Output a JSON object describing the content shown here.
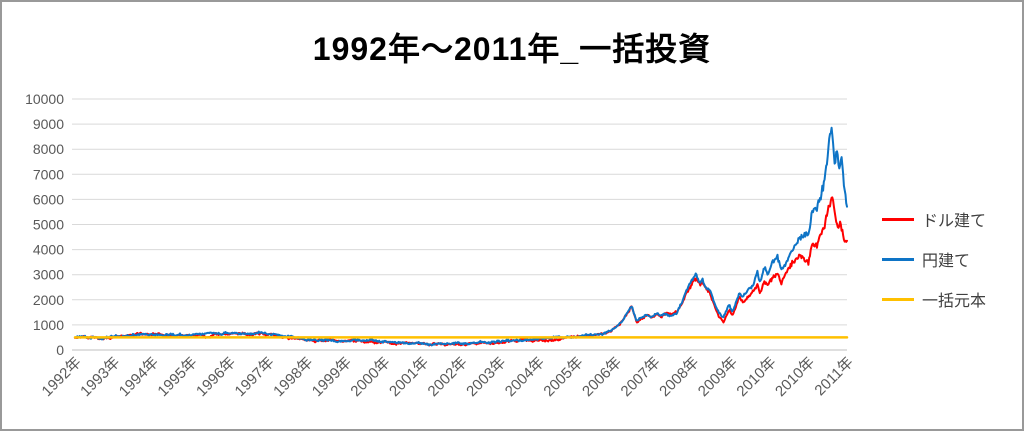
{
  "window": {
    "background": "#ffffff",
    "border_color": "#999999"
  },
  "title": "1992年～2011年_一括投資",
  "legend": {
    "position": "right",
    "items": [
      {
        "label": "ドル建て",
        "color": "#ff0000"
      },
      {
        "label": "円建て",
        "color": "#0e74c6"
      },
      {
        "label": "一括元本",
        "color": "#ffc000"
      }
    ]
  },
  "chart_data": {
    "type": "line",
    "title": "1992年～2011年_一括投資",
    "xlabel": "",
    "ylabel": "",
    "ylim": [
      0,
      10000
    ],
    "y_ticks": [
      0,
      1000,
      2000,
      3000,
      4000,
      5000,
      6000,
      7000,
      8000,
      9000,
      10000
    ],
    "x_tick_labels": [
      "1992年",
      "1993年",
      "1994年",
      "1995年",
      "1996年",
      "1997年",
      "1998年",
      "1999年",
      "2000年",
      "2001年",
      "2002年",
      "2003年",
      "2004年",
      "2005年",
      "2006年",
      "2007年",
      "2008年",
      "2009年",
      "2010年",
      "2010年",
      "2011年"
    ],
    "grid": "horizontal",
    "gridline_color": "#d9d9d9",
    "baseline_color": "#bfbfbf",
    "axis_label_color": "#595959",
    "legend_position": "right",
    "noise": {
      "seed": 7,
      "amplitude_ratio": 0.03,
      "min_amplitude": 45,
      "step": 0.02
    },
    "series": [
      {
        "name": "ドル建て",
        "color": "#ff0000",
        "noisy": true,
        "points": [
          [
            0,
            500
          ],
          [
            0.2,
            510
          ],
          [
            0.45,
            465
          ],
          [
            0.7,
            440
          ],
          [
            0.95,
            500
          ],
          [
            1.2,
            520
          ],
          [
            1.5,
            570
          ],
          [
            1.75,
            630
          ],
          [
            1.9,
            600
          ],
          [
            2.05,
            625
          ],
          [
            2.3,
            570
          ],
          [
            2.55,
            590
          ],
          [
            2.8,
            575
          ],
          [
            3.05,
            610
          ],
          [
            3.3,
            590
          ],
          [
            3.45,
            475
          ],
          [
            3.6,
            615
          ],
          [
            3.8,
            605
          ],
          [
            4.05,
            630
          ],
          [
            4.3,
            650
          ],
          [
            4.55,
            620
          ],
          [
            4.72,
            665
          ],
          [
            4.9,
            630
          ],
          [
            5.1,
            590
          ],
          [
            5.35,
            530
          ],
          [
            5.6,
            475
          ],
          [
            5.85,
            415
          ],
          [
            6.1,
            375
          ],
          [
            6.22,
            335
          ],
          [
            6.35,
            395
          ],
          [
            6.6,
            355
          ],
          [
            6.85,
            335
          ],
          [
            7.15,
            375
          ],
          [
            7.4,
            355
          ],
          [
            7.65,
            335
          ],
          [
            7.9,
            320
          ],
          [
            8.2,
            305
          ],
          [
            8.45,
            285
          ],
          [
            8.7,
            265
          ],
          [
            8.95,
            245
          ],
          [
            9.2,
            225
          ],
          [
            9.45,
            245
          ],
          [
            9.7,
            215
          ],
          [
            9.95,
            225
          ],
          [
            10.25,
            248
          ],
          [
            10.5,
            288
          ],
          [
            10.75,
            268
          ],
          [
            11.05,
            308
          ],
          [
            11.3,
            345
          ],
          [
            11.55,
            385
          ],
          [
            11.8,
            408
          ],
          [
            12.05,
            432
          ],
          [
            12.3,
            428
          ],
          [
            12.55,
            458
          ],
          [
            12.85,
            492
          ],
          [
            13.1,
            532
          ],
          [
            13.4,
            572
          ],
          [
            13.65,
            635
          ],
          [
            13.9,
            790
          ],
          [
            14.15,
            1090
          ],
          [
            14.42,
            1690
          ],
          [
            14.55,
            1130
          ],
          [
            14.7,
            1250
          ],
          [
            14.82,
            1370
          ],
          [
            14.95,
            1300
          ],
          [
            15.08,
            1420
          ],
          [
            15.2,
            1360
          ],
          [
            15.33,
            1470
          ],
          [
            15.46,
            1420
          ],
          [
            15.6,
            1530
          ],
          [
            15.72,
            1820
          ],
          [
            15.85,
            2320
          ],
          [
            16.0,
            2730
          ],
          [
            16.1,
            2900
          ],
          [
            16.18,
            2620
          ],
          [
            16.26,
            2740
          ],
          [
            16.35,
            2420
          ],
          [
            16.45,
            2290
          ],
          [
            16.55,
            1890
          ],
          [
            16.68,
            1390
          ],
          [
            16.8,
            1150
          ],
          [
            16.88,
            1450
          ],
          [
            16.95,
            1640
          ],
          [
            17.03,
            1400
          ],
          [
            17.12,
            1720
          ],
          [
            17.2,
            2050
          ],
          [
            17.32,
            1880
          ],
          [
            17.45,
            2130
          ],
          [
            17.58,
            2280
          ],
          [
            17.68,
            2560
          ],
          [
            17.75,
            2210
          ],
          [
            17.85,
            2710
          ],
          [
            17.95,
            2510
          ],
          [
            18.05,
            2830
          ],
          [
            18.2,
            3060
          ],
          [
            18.3,
            2680
          ],
          [
            18.45,
            3110
          ],
          [
            18.6,
            3510
          ],
          [
            18.75,
            3700
          ],
          [
            18.9,
            3630
          ],
          [
            19.0,
            3450
          ],
          [
            19.1,
            4180
          ],
          [
            19.25,
            4300
          ],
          [
            19.4,
            5100
          ],
          [
            19.5,
            5620
          ],
          [
            19.62,
            6100
          ],
          [
            19.7,
            5400
          ],
          [
            19.77,
            4980
          ],
          [
            19.82,
            5220
          ],
          [
            19.88,
            4700
          ],
          [
            19.95,
            4300
          ],
          [
            20.0,
            4200
          ]
        ]
      },
      {
        "name": "円建て",
        "color": "#0e74c6",
        "noisy": true,
        "points": [
          [
            0,
            500
          ],
          [
            0.2,
            530
          ],
          [
            0.45,
            490
          ],
          [
            0.7,
            460
          ],
          [
            0.95,
            520
          ],
          [
            1.2,
            545
          ],
          [
            1.5,
            600
          ],
          [
            1.75,
            680
          ],
          [
            1.9,
            635
          ],
          [
            2.05,
            660
          ],
          [
            2.3,
            605
          ],
          [
            2.55,
            625
          ],
          [
            2.8,
            605
          ],
          [
            3.05,
            645
          ],
          [
            3.3,
            620
          ],
          [
            3.55,
            655
          ],
          [
            3.8,
            640
          ],
          [
            4.05,
            665
          ],
          [
            4.3,
            685
          ],
          [
            4.55,
            655
          ],
          [
            4.72,
            705
          ],
          [
            4.9,
            665
          ],
          [
            5.1,
            625
          ],
          [
            5.35,
            565
          ],
          [
            5.6,
            505
          ],
          [
            5.85,
            445
          ],
          [
            6.1,
            405
          ],
          [
            6.22,
            365
          ],
          [
            6.35,
            430
          ],
          [
            6.6,
            390
          ],
          [
            6.85,
            365
          ],
          [
            7.15,
            405
          ],
          [
            7.4,
            385
          ],
          [
            7.65,
            365
          ],
          [
            7.9,
            345
          ],
          [
            8.2,
            330
          ],
          [
            8.45,
            305
          ],
          [
            8.7,
            285
          ],
          [
            8.95,
            265
          ],
          [
            9.2,
            245
          ],
          [
            9.45,
            265
          ],
          [
            9.7,
            235
          ],
          [
            9.95,
            245
          ],
          [
            10.25,
            268
          ],
          [
            10.5,
            308
          ],
          [
            10.75,
            288
          ],
          [
            11.05,
            328
          ],
          [
            11.3,
            365
          ],
          [
            11.55,
            405
          ],
          [
            11.8,
            428
          ],
          [
            12.05,
            452
          ],
          [
            12.3,
            448
          ],
          [
            12.55,
            478
          ],
          [
            12.85,
            512
          ],
          [
            13.1,
            552
          ],
          [
            13.4,
            592
          ],
          [
            13.65,
            655
          ],
          [
            13.9,
            815
          ],
          [
            14.15,
            1120
          ],
          [
            14.42,
            1730
          ],
          [
            14.55,
            1160
          ],
          [
            14.7,
            1280
          ],
          [
            14.82,
            1400
          ],
          [
            14.95,
            1330
          ],
          [
            15.08,
            1440
          ],
          [
            15.2,
            1380
          ],
          [
            15.33,
            1430
          ],
          [
            15.46,
            1390
          ],
          [
            15.6,
            1500
          ],
          [
            15.72,
            1850
          ],
          [
            15.85,
            2350
          ],
          [
            16.0,
            2800
          ],
          [
            16.1,
            2990
          ],
          [
            16.18,
            2700
          ],
          [
            16.26,
            2830
          ],
          [
            16.35,
            2500
          ],
          [
            16.45,
            2390
          ],
          [
            16.55,
            1990
          ],
          [
            16.68,
            1510
          ],
          [
            16.8,
            1310
          ],
          [
            16.88,
            1630
          ],
          [
            16.95,
            1830
          ],
          [
            17.03,
            1560
          ],
          [
            17.12,
            1900
          ],
          [
            17.2,
            2310
          ],
          [
            17.32,
            2150
          ],
          [
            17.45,
            2430
          ],
          [
            17.58,
            2630
          ],
          [
            17.68,
            3030
          ],
          [
            17.75,
            2630
          ],
          [
            17.85,
            3310
          ],
          [
            17.95,
            2990
          ],
          [
            18.05,
            3430
          ],
          [
            18.2,
            3800
          ],
          [
            18.3,
            3200
          ],
          [
            18.45,
            3590
          ],
          [
            18.6,
            4020
          ],
          [
            18.75,
            4380
          ],
          [
            18.9,
            4700
          ],
          [
            19.0,
            4550
          ],
          [
            19.1,
            5500
          ],
          [
            19.22,
            5700
          ],
          [
            19.35,
            6300
          ],
          [
            19.48,
            7500
          ],
          [
            19.56,
            8700
          ],
          [
            19.61,
            9000
          ],
          [
            19.68,
            7500
          ],
          [
            19.74,
            7900
          ],
          [
            19.8,
            7300
          ],
          [
            19.86,
            7750
          ],
          [
            19.93,
            6500
          ],
          [
            20.0,
            5750
          ]
        ]
      },
      {
        "name": "一括元本",
        "color": "#ffc000",
        "noisy": false,
        "points": [
          [
            0,
            500
          ],
          [
            20.0,
            500
          ]
        ]
      }
    ]
  }
}
